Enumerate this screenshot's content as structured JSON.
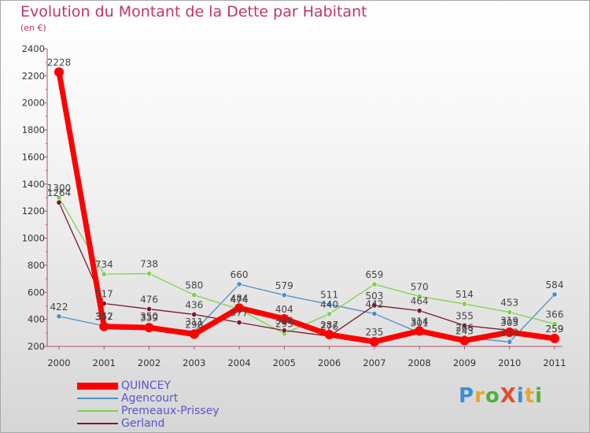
{
  "title": "Evolution du Montant de la Dette par Habitant",
  "subtitle": "(en €)",
  "logo": {
    "text": "ProXiti",
    "letter_colors": [
      "#3a8fd6",
      "#e8a72a",
      "#4fb13a",
      "#e84b2e",
      "#3a8fd6",
      "#e8a72a",
      "#4fb13a"
    ]
  },
  "chart_data": {
    "type": "line",
    "x": [
      "2000",
      "2001",
      "2002",
      "2003",
      "2004",
      "2005",
      "2006",
      "2007",
      "2008",
      "2009",
      "2010",
      "2011"
    ],
    "ylim": [
      200,
      2400
    ],
    "yticks": [
      200,
      400,
      600,
      800,
      1000,
      1200,
      1400,
      1600,
      1800,
      2000,
      2200,
      2400
    ],
    "grid": false,
    "legend_position": "bottom-left",
    "series": [
      {
        "name": "QUINCEY",
        "color": "#ff0000",
        "values": [
          2228,
          347,
          339,
          290,
          484,
          404,
          287,
          235,
          314,
          243,
          305,
          259
        ]
      },
      {
        "name": "Agencourt",
        "color": "#4a90c8",
        "values": [
          422,
          352,
          350,
          311,
          660,
          579,
          511,
          442,
          301,
          266,
          233,
          584
        ]
      },
      {
        "name": "Premeaux-Prissey",
        "color": "#7ed24a",
        "values": [
          1300,
          734,
          738,
          580,
          474,
          295,
          440,
          659,
          570,
          514,
          453,
          366
        ]
      },
      {
        "name": "Gerland",
        "color": "#7b1a2a",
        "values": [
          1264,
          517,
          476,
          436,
          377,
          318,
          276,
          503,
          464,
          355,
          319,
          259
        ]
      }
    ]
  }
}
